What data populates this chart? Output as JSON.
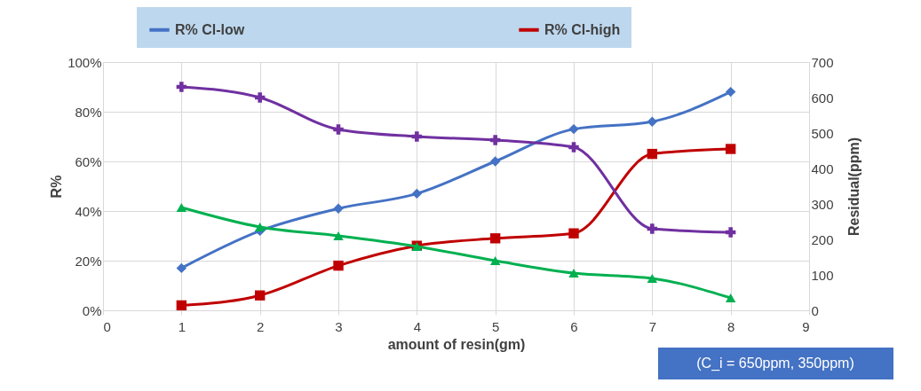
{
  "chart_data": {
    "type": "line",
    "xlabel": "amount of resin(gm)",
    "ylabel": "R%",
    "y2label": "Residual(ppm)",
    "x": [
      1,
      2,
      3,
      4,
      5,
      6,
      7,
      8
    ],
    "xlim": [
      0,
      9
    ],
    "xticks": [
      0,
      1,
      2,
      3,
      4,
      5,
      6,
      7,
      8,
      9
    ],
    "ylim": [
      0,
      100
    ],
    "yticks": [
      {
        "value": 0,
        "label": "0%"
      },
      {
        "value": 20,
        "label": "20%"
      },
      {
        "value": 40,
        "label": "40%"
      },
      {
        "value": 60,
        "label": "60%"
      },
      {
        "value": 80,
        "label": "80%"
      },
      {
        "value": 100,
        "label": "100%"
      }
    ],
    "y2lim": [
      0,
      700
    ],
    "y2ticks": [
      0,
      100,
      200,
      300,
      400,
      500,
      600,
      700
    ],
    "grid": true,
    "legend": "top",
    "series": [
      {
        "name": "R% Cl-low",
        "color": "#4472c4",
        "marker": "diamond",
        "values": [
          17,
          32,
          41,
          47,
          60,
          73,
          76,
          88
        ]
      },
      {
        "name": "R% Cl-high",
        "color": "#c00000",
        "marker": "square",
        "values": [
          2,
          6,
          18,
          26,
          29,
          31,
          63,
          65
        ]
      },
      {
        "color": "#7030a0",
        "marker": "cross",
        "axis": "y2",
        "values": [
          630,
          600,
          510,
          490,
          480,
          460,
          230,
          220
        ]
      },
      {
        "color": "#00b050",
        "marker": "triangle",
        "axis": "y2",
        "values": [
          290,
          235,
          210,
          180,
          140,
          105,
          90,
          35
        ]
      }
    ],
    "annotations": [
      "(C_i = 650ppm, 350ppm)"
    ]
  }
}
